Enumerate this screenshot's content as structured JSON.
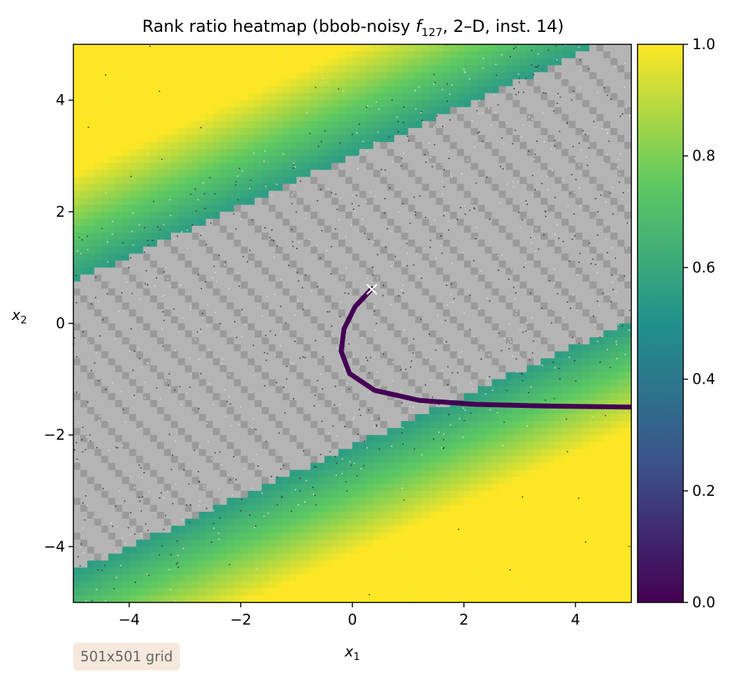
{
  "chart_data": {
    "type": "heatmap",
    "title": {
      "prefix": "Rank ratio heatmap (bbob-noisy ",
      "func_italic": "f",
      "func_sub": "127",
      "suffix": ", 2–D, inst. 14)"
    },
    "xlabel": {
      "base": "x",
      "sub": "1"
    },
    "ylabel": {
      "base": "x",
      "sub": "2"
    },
    "xlim": [
      -5,
      5
    ],
    "ylim": [
      -5,
      5
    ],
    "x_ticks": [
      -4,
      -2,
      0,
      2,
      4
    ],
    "y_ticks": [
      -4,
      -2,
      0,
      2,
      4
    ],
    "x_tick_labels": [
      "−4",
      "−2",
      "0",
      "2",
      "4"
    ],
    "y_tick_labels": [
      "−4",
      "−2",
      "0",
      "2",
      "4"
    ],
    "colorbar": {
      "range": [
        0,
        1
      ],
      "ticks": [
        0.0,
        0.2,
        0.4,
        0.6,
        0.8,
        1.0
      ],
      "tick_labels": [
        "0.0",
        "0.2",
        "0.4",
        "0.6",
        "0.8",
        "1.0"
      ],
      "colormap": "viridis"
    },
    "optimum_marker": {
      "x": 0.35,
      "y": 0.62,
      "symbol": "×",
      "color": "#ffffff"
    },
    "grid": false
  },
  "annotation": {
    "text": "501x501 grid"
  },
  "colors": {
    "viridis_stops": [
      "#440154",
      "#3b528b",
      "#21918c",
      "#5ec962",
      "#fde725"
    ],
    "noise_gray": "#8c8c8c",
    "contour_gray": "#c8c8c8"
  }
}
